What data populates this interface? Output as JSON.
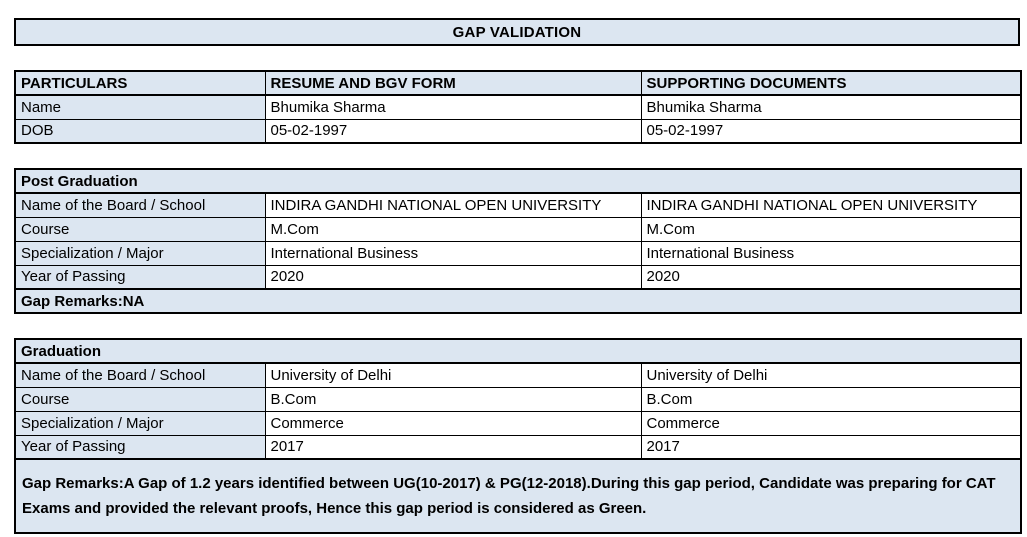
{
  "style": {
    "accent_fill": "#dce6f1",
    "border_color": "#000000",
    "text_color": "#000000"
  },
  "title": "GAP VALIDATION",
  "particulars_table": {
    "headers": [
      "PARTICULARS",
      "RESUME AND BGV FORM",
      "SUPPORTING DOCUMENTS"
    ],
    "rows": [
      {
        "label": "Name",
        "resume": "Bhumika Sharma",
        "supporting": "Bhumika Sharma"
      },
      {
        "label": "DOB",
        "resume": "05-02-1997",
        "supporting": "05-02-1997"
      }
    ]
  },
  "post_graduation": {
    "section_title": "Post Graduation",
    "rows": [
      {
        "label": "Name of the Board / School",
        "resume": "INDIRA GANDHI NATIONAL OPEN UNIVERSITY",
        "supporting": "INDIRA GANDHI NATIONAL OPEN UNIVERSITY"
      },
      {
        "label": "Course",
        "resume": "M.Com",
        "supporting": "M.Com"
      },
      {
        "label": "Specialization / Major",
        "resume": "International Business",
        "supporting": "International Business"
      },
      {
        "label": "Year of Passing",
        "resume": "2020",
        "supporting": "2020"
      }
    ],
    "gap_remarks": "Gap Remarks:NA"
  },
  "graduation": {
    "section_title": "Graduation",
    "rows": [
      {
        "label": "Name of the Board / School",
        "resume": "University of Delhi",
        "supporting": "University of Delhi"
      },
      {
        "label": "Course",
        "resume": "B.Com",
        "supporting": "B.Com"
      },
      {
        "label": "Specialization / Major",
        "resume": "Commerce",
        "supporting": "Commerce"
      },
      {
        "label": "Year of Passing",
        "resume": "2017",
        "supporting": "2017"
      }
    ],
    "gap_remarks": "Gap Remarks:A Gap of 1.2 years identified between UG(10-2017) & PG(12-2018).During this gap period, Candidate was preparing for CAT Exams and provided the relevant proofs, Hence this gap period is considered as Green."
  }
}
